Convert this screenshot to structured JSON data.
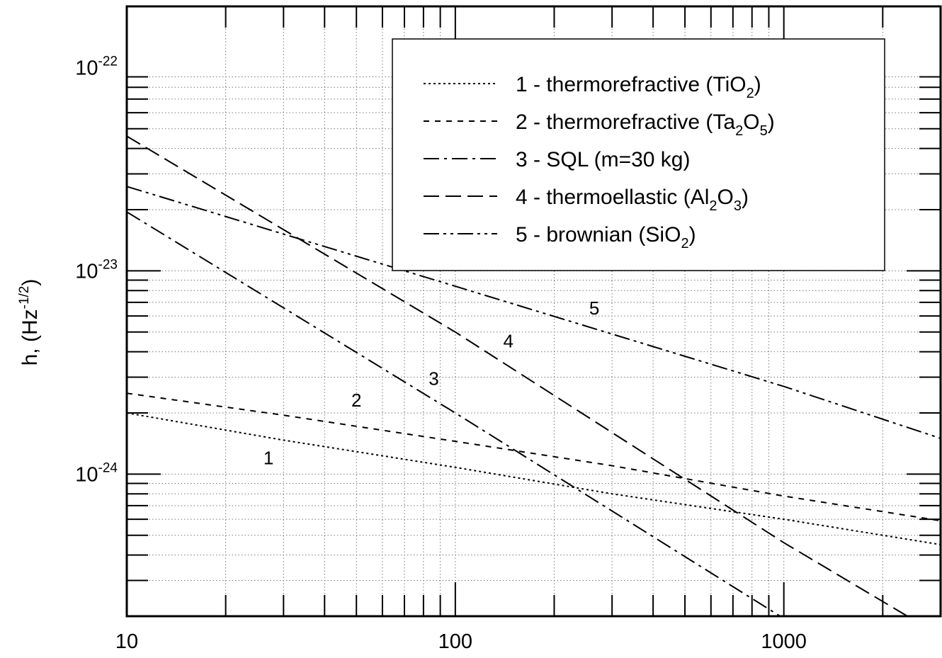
{
  "chart_data": {
    "type": "line",
    "xscale": "log",
    "yscale": "log",
    "xlim": [
      10,
      3000
    ],
    "ylim": [
      2e-25,
      2e-22
    ],
    "xticks": [
      {
        "value": 10,
        "label": "10"
      },
      {
        "value": 100,
        "label": "100"
      },
      {
        "value": 1000,
        "label": "1000"
      }
    ],
    "yticks": [
      {
        "value": 1e-22,
        "base": "10",
        "exp": "-22"
      },
      {
        "value": 1e-23,
        "base": "10",
        "exp": "-23"
      },
      {
        "value": 1e-24,
        "base": "10",
        "exp": "-24"
      }
    ],
    "ylabel": {
      "text": "h, (Hz",
      "exp": "-1/2",
      "close": ")"
    },
    "xlabel": "",
    "grid": true,
    "legend_position": "top-right",
    "series": [
      {
        "id": "1",
        "legend_prefix": "1 - thermorefractive (TiO",
        "legend_parts": [
          {
            "sub": "2"
          },
          {
            "text": ")"
          }
        ],
        "style": "dotted",
        "label_at": 27,
        "label_val": 1.12e-24,
        "x": [
          10,
          30,
          100,
          300,
          1000,
          3000
        ],
        "y": [
          2e-24,
          1.47e-24,
          1.08e-24,
          8e-25,
          6e-25,
          4.5e-25
        ]
      },
      {
        "id": "2",
        "legend_prefix": "2 - thermorefractive (Ta",
        "legend_parts": [
          {
            "sub": "2"
          },
          {
            "text": "O"
          },
          {
            "sub": "5"
          },
          {
            "text": ")"
          }
        ],
        "style": "shortdash",
        "label_at": 50,
        "label_val": 2.15e-24,
        "x": [
          10,
          30,
          100,
          300,
          1000,
          3000
        ],
        "y": [
          2.5e-24,
          1.95e-24,
          1.45e-24,
          1.1e-24,
          7.8e-25,
          5.9e-25
        ]
      },
      {
        "id": "3",
        "legend_prefix": "3 - SQL (m=30 kg)",
        "legend_parts": [],
        "style": "dashdot",
        "label_at": 86,
        "label_val": 2.75e-24,
        "x": [
          10,
          100,
          1000
        ],
        "y": [
          1.95e-23,
          2e-24,
          1.95e-25
        ]
      },
      {
        "id": "4",
        "legend_prefix": "4 - thermoellastic (Al",
        "legend_parts": [
          {
            "sub": "2"
          },
          {
            "text": "O"
          },
          {
            "sub": "3"
          },
          {
            "text": ")"
          }
        ],
        "style": "longdash",
        "label_at": 145,
        "label_val": 4.2e-24,
        "x": [
          10,
          100,
          1000,
          3000
        ],
        "y": [
          4.6e-23,
          5e-24,
          4.6e-25,
          1.6e-25
        ]
      },
      {
        "id": "5",
        "legend_prefix": "5 - brownian (SiO",
        "legend_parts": [
          {
            "sub": "2"
          },
          {
            "text": ")"
          }
        ],
        "style": "dashdotdot",
        "label_at": 265,
        "label_val": 6.1e-24,
        "x": [
          10,
          100,
          1000,
          3000
        ],
        "y": [
          2.6e-23,
          8.4e-24,
          2.7e-24,
          1.5e-24
        ]
      }
    ]
  }
}
